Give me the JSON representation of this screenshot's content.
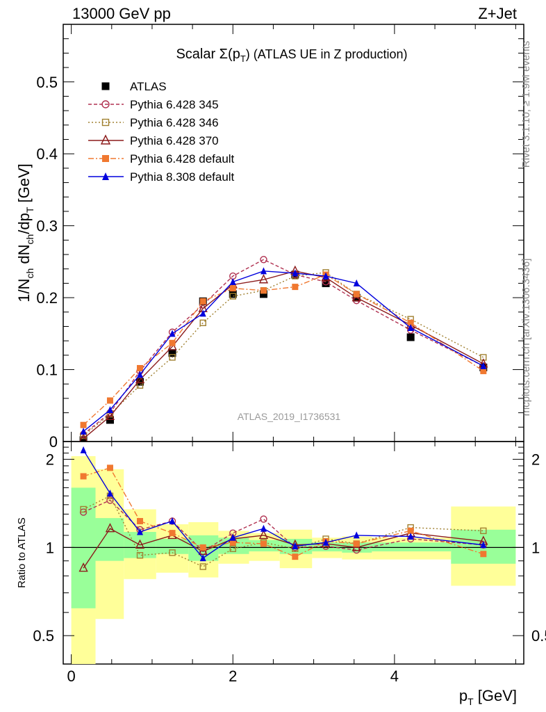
{
  "header": {
    "left": "13000 GeV pp",
    "right": "Z+Jet",
    "side_top": "Rivet 3.1.10, ≥ 1.9M events",
    "side_bottom": "mcplots.cern.ch [arXiv:1306.3436]"
  },
  "chart_data": {
    "type": "line",
    "title": "Scalar Σ(p_T) (ATLAS UE in Z production)",
    "title_main": "Scalar Σ(p",
    "title_sub": "T",
    "title_rest": ") (ATLAS UE in Z production)",
    "watermark": "ATLAS_2019_I1736531",
    "xlabel": "p_T [GeV]",
    "xlabel_main": "p",
    "xlabel_sub": "T",
    "xlabel_rest": " [GeV]",
    "ylabel": "1/N_ch dN_ch/dp_T [GeV]",
    "ylabel_parts": [
      "1/N",
      "ch",
      " dN",
      "ch",
      "/dp",
      "T",
      " [GeV]"
    ],
    "ratio_ylabel": "Ratio to ATLAS",
    "xlim": [
      -0.1,
      5.6
    ],
    "ylim": [
      0,
      0.58
    ],
    "ratio_ylim": [
      0.4,
      2.3
    ],
    "x_ticks": [
      0,
      2,
      4
    ],
    "x_tick_labels": [
      "0",
      "2",
      "4"
    ],
    "y_ticks": [
      0,
      0.1,
      0.2,
      0.3,
      0.4,
      0.5
    ],
    "y_tick_labels": [
      "0",
      "0.1",
      "0.2",
      "0.3",
      "0.4",
      "0.5"
    ],
    "ratio_ticks": [
      0.5,
      1,
      2
    ],
    "ratio_tick_labels": [
      "0.5",
      "1",
      "2"
    ],
    "x": [
      0.15,
      0.48,
      0.85,
      1.25,
      1.63,
      2.0,
      2.38,
      2.77,
      3.15,
      3.53,
      4.2,
      5.1
    ],
    "bin_edges": [
      0.0,
      0.3,
      0.65,
      1.05,
      1.45,
      1.82,
      2.2,
      2.58,
      2.98,
      3.35,
      3.72,
      4.7,
      5.5
    ],
    "ratio_bands": {
      "green": [
        [
          0.62,
          1.6
        ],
        [
          0.9,
          1.26
        ],
        [
          0.92,
          1.13
        ],
        [
          0.95,
          1.07
        ],
        [
          0.9,
          1.1
        ],
        [
          0.95,
          1.08
        ],
        [
          0.97,
          1.06
        ],
        [
          0.95,
          1.07
        ],
        [
          0.97,
          1.04
        ],
        [
          0.96,
          1.04
        ],
        [
          0.97,
          1.04
        ],
        [
          0.88,
          1.15
        ]
      ],
      "yellow": [
        [
          0.4,
          2.05
        ],
        [
          0.57,
          1.85
        ],
        [
          0.78,
          1.35
        ],
        [
          0.82,
          1.2
        ],
        [
          0.79,
          1.22
        ],
        [
          0.88,
          1.14
        ],
        [
          0.9,
          1.12
        ],
        [
          0.85,
          1.15
        ],
        [
          0.92,
          1.08
        ],
        [
          0.91,
          1.09
        ],
        [
          0.91,
          1.08
        ],
        [
          0.74,
          1.38
        ]
      ]
    },
    "series": [
      {
        "name": "ATLAS",
        "color": "#000000",
        "marker": "square-filled",
        "dash": "none",
        "values": [
          0.002,
          0.03,
          0.083,
          0.123,
          0.195,
          0.205,
          0.205,
          0.232,
          0.22,
          0.2,
          0.145,
          0.103
        ],
        "ratio": [
          1,
          1,
          1,
          1,
          1,
          1,
          1,
          1,
          1,
          1,
          1,
          1
        ]
      },
      {
        "name": "Pythia 6.428 345",
        "color": "#b03050",
        "marker": "circle-open",
        "dash": "5,3",
        "values": [
          0.01,
          0.04,
          0.098,
          0.152,
          0.19,
          0.23,
          0.253,
          0.232,
          0.222,
          0.196,
          0.155,
          0.105
        ],
        "ratio": [
          1.32,
          1.45,
          1.15,
          1.23,
          0.97,
          1.12,
          1.25,
          1.0,
          1.01,
          0.98,
          1.07,
          1.02
        ]
      },
      {
        "name": "Pythia 6.428 346",
        "color": "#a08030",
        "marker": "square-open",
        "dash": "2,3",
        "values": [
          0.008,
          0.038,
          0.078,
          0.117,
          0.165,
          0.202,
          0.21,
          0.23,
          0.235,
          0.205,
          0.17,
          0.117
        ],
        "ratio": [
          1.35,
          1.5,
          0.94,
          0.96,
          0.86,
          0.99,
          1.04,
          0.99,
          1.07,
          1.03,
          1.17,
          1.14
        ]
      },
      {
        "name": "Pythia 6.428 370",
        "color": "#8b1a1a",
        "marker": "triangle-open",
        "dash": "none",
        "values": [
          0.004,
          0.035,
          0.086,
          0.132,
          0.185,
          0.218,
          0.225,
          0.237,
          0.228,
          0.2,
          0.162,
          0.108
        ],
        "ratio": [
          0.85,
          1.16,
          1.02,
          1.1,
          0.97,
          1.07,
          1.1,
          1.02,
          1.03,
          1.0,
          1.12,
          1.05
        ]
      },
      {
        "name": "Pythia 6.428 default",
        "color": "#f07830",
        "marker": "square-filled",
        "dash": "8,3,2,3",
        "values": [
          0.023,
          0.057,
          0.102,
          0.137,
          0.195,
          0.213,
          0.21,
          0.215,
          0.232,
          0.205,
          0.165,
          0.098
        ],
        "ratio": [
          1.75,
          1.87,
          1.23,
          1.12,
          1.0,
          1.04,
          1.03,
          0.93,
          1.05,
          1.03,
          1.14,
          0.95
        ]
      },
      {
        "name": "Pythia 8.308 default",
        "color": "#0000dd",
        "marker": "triangle-filled",
        "dash": "none",
        "values": [
          0.014,
          0.044,
          0.093,
          0.15,
          0.178,
          0.222,
          0.237,
          0.234,
          0.23,
          0.22,
          0.158,
          0.105
        ],
        "ratio": [
          2.15,
          1.53,
          1.13,
          1.23,
          0.92,
          1.08,
          1.16,
          1.01,
          1.04,
          1.1,
          1.09,
          1.02
        ]
      }
    ]
  }
}
